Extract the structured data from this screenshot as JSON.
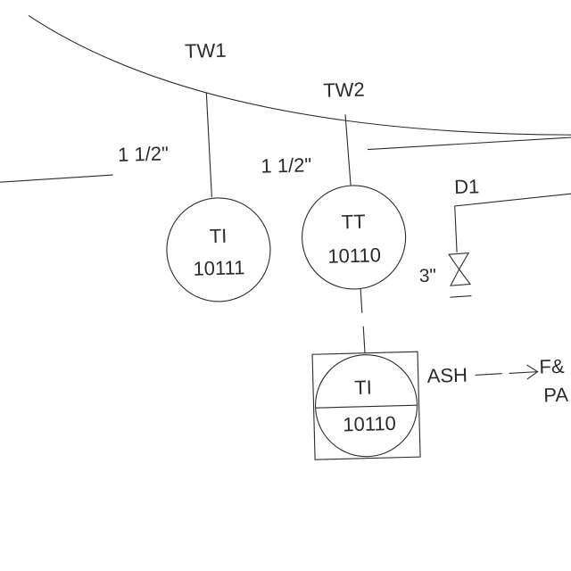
{
  "colors": {
    "background": "#ffffff",
    "ink": "#2b2b2b"
  },
  "thermowells": {
    "tw1": "TW1",
    "tw2": "TW2"
  },
  "pipe_sizes": {
    "tw1_size": "1 1/2\"",
    "tw2_size": "1 1/2\""
  },
  "instruments": {
    "ti_10111": {
      "tag": "TI",
      "number": "10111"
    },
    "tt_10110": {
      "tag": "TT",
      "number": "10110"
    },
    "ti_10110": {
      "tag": "TI",
      "number": "10110"
    }
  },
  "drain": {
    "label": "D1",
    "valve_size": "3\""
  },
  "alarm": {
    "label": "ASH",
    "destination_line1": "F&",
    "destination_line2": "PA"
  }
}
